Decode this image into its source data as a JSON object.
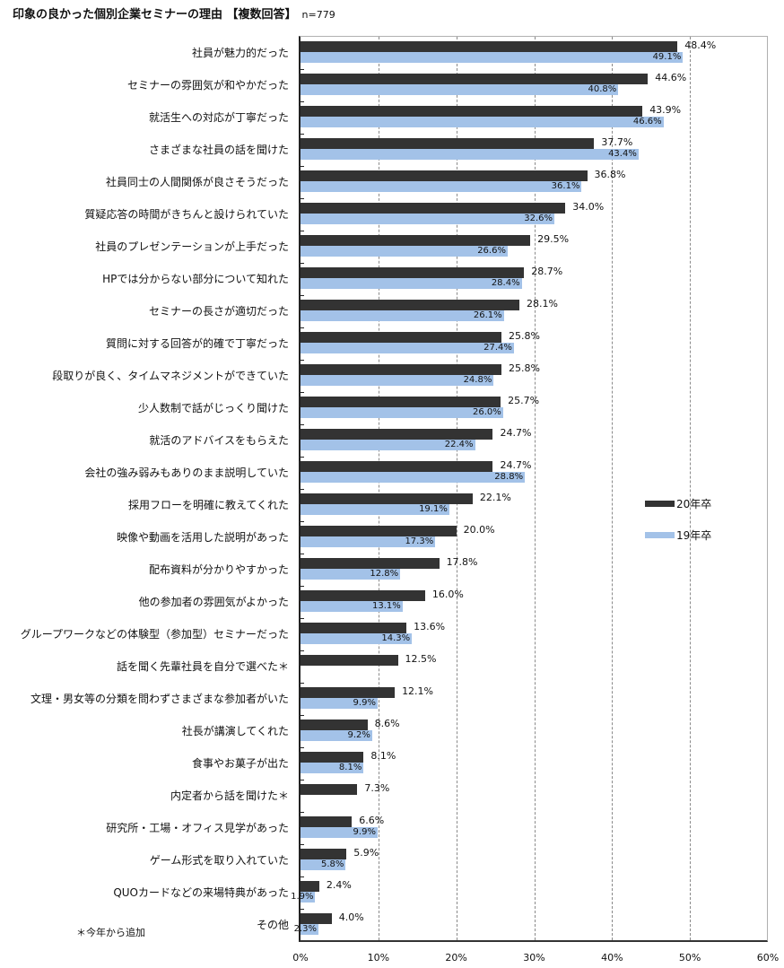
{
  "title": "印象の良かった個別企業セミナーの理由 【複数回答】",
  "sample_size": "n=779",
  "footnote": "＊今年から追加",
  "legend": [
    {
      "label": "20年卒",
      "color": "#333333"
    },
    {
      "label": "19年卒",
      "color": "#a3c2e8"
    }
  ],
  "x_ticks": [
    "0%",
    "10%",
    "20%",
    "30%",
    "40%",
    "50%",
    "60%"
  ],
  "chart_data": {
    "type": "bar",
    "orientation": "horizontal",
    "title": "印象の良かった個別企業セミナーの理由 【複数回答】 n=779",
    "xlabel": "",
    "ylabel": "",
    "xlim": [
      0,
      60
    ],
    "grid": true,
    "legend_position": "right",
    "categories": [
      "社員が魅力的だった",
      "セミナーの雰囲気が和やかだった",
      "就活生への対応が丁寧だった",
      "さまざまな社員の話を聞けた",
      "社員同士の人間関係が良さそうだった",
      "質疑応答の時間がきちんと設けられていた",
      "社員のプレゼンテーションが上手だった",
      "HPでは分からない部分について知れた",
      "セミナーの長さが適切だった",
      "質問に対する回答が的確で丁寧だった",
      "段取りが良く、タイムマネジメントができていた",
      "少人数制で話がじっくり聞けた",
      "就活のアドバイスをもらえた",
      "会社の強み弱みもありのまま説明していた",
      "採用フローを明確に教えてくれた",
      "映像や動画を活用した説明があった",
      "配布資料が分かりやすかった",
      "他の参加者の雰囲気がよかった",
      "グループワークなどの体験型（参加型）セミナーだった",
      "話を聞く先輩社員を自分で選べた＊",
      "文理・男女等の分類を問わずさまざまな参加者がいた",
      "社長が講演してくれた",
      "食事やお菓子が出た",
      "内定者から話を聞けた＊",
      "研究所・工場・オフィス見学があった",
      "ゲーム形式を取り入れていた",
      "QUOカードなどの来場特典があった",
      "その他"
    ],
    "series": [
      {
        "name": "20年卒",
        "color": "#333333",
        "values": [
          48.4,
          44.6,
          43.9,
          37.7,
          36.8,
          34.0,
          29.5,
          28.7,
          28.1,
          25.8,
          25.8,
          25.7,
          24.7,
          24.7,
          22.1,
          20.0,
          17.8,
          16.0,
          13.6,
          12.5,
          12.1,
          8.6,
          8.1,
          7.3,
          6.6,
          5.9,
          2.4,
          4.0
        ]
      },
      {
        "name": "19年卒",
        "color": "#a3c2e8",
        "values": [
          49.1,
          40.8,
          46.6,
          43.4,
          36.1,
          32.6,
          26.6,
          28.4,
          26.1,
          27.4,
          24.8,
          26.0,
          22.4,
          28.8,
          19.1,
          17.3,
          12.8,
          13.1,
          14.3,
          null,
          9.9,
          9.2,
          8.1,
          null,
          9.9,
          5.8,
          1.9,
          2.3
        ]
      }
    ]
  }
}
